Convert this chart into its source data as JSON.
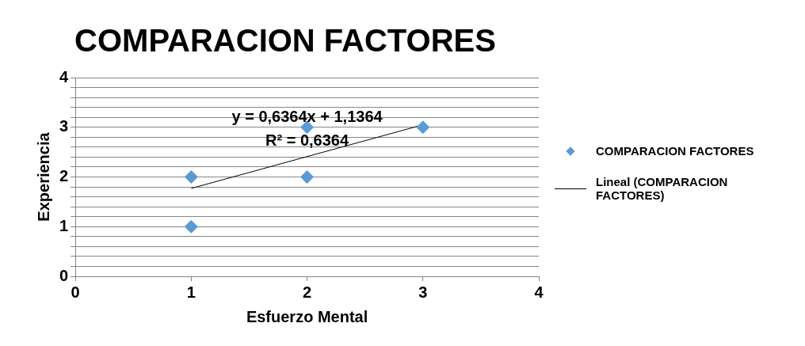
{
  "chart_data": {
    "type": "scatter",
    "title": "COMPARACION FACTORES",
    "xlabel": "Esfuerzo Mental",
    "ylabel": "Experiencia",
    "xlim": [
      0,
      4
    ],
    "xticks": [
      0,
      1,
      2,
      3,
      4
    ],
    "ylim": [
      0,
      4
    ],
    "yticks": [
      0,
      {
        "value": 0.2,
        "label": null
      },
      {
        "value": 0.4,
        "label": null
      },
      {
        "value": 0.6,
        "label": null
      },
      {
        "value": 0.8,
        "label": null
      },
      1,
      {
        "value": 1.2,
        "label": null
      },
      {
        "value": 1.4,
        "label": null
      },
      {
        "value": 1.6,
        "label": null
      },
      {
        "value": 1.8,
        "label": null
      },
      2,
      {
        "value": 2.2,
        "label": null
      },
      {
        "value": 2.4,
        "label": null
      },
      {
        "value": 2.6,
        "label": null
      },
      {
        "value": 2.8,
        "label": null
      },
      3,
      {
        "value": 3.2,
        "label": null
      },
      {
        "value": 3.4,
        "label": null
      },
      {
        "value": 3.6,
        "label": null
      },
      {
        "value": 3.8,
        "label": null
      },
      4
    ],
    "grid": "y",
    "legend": "right",
    "series": [
      {
        "name": "COMPARACION FACTORES",
        "marker": "diamond",
        "color": "#5b9bd5",
        "x": [
          1,
          1,
          2,
          2,
          3
        ],
        "values": [
          2,
          1,
          3,
          2,
          3
        ]
      },
      {
        "name": "Lineal (COMPARACION FACTORES)",
        "type": "line",
        "marker": "none",
        "color": "#000000",
        "x": [
          1,
          3
        ],
        "values": [
          1.77,
          3.05
        ]
      }
    ],
    "annotations": [
      "y = 0,6364x + 1,1364",
      "R² = 0,6364"
    ]
  }
}
